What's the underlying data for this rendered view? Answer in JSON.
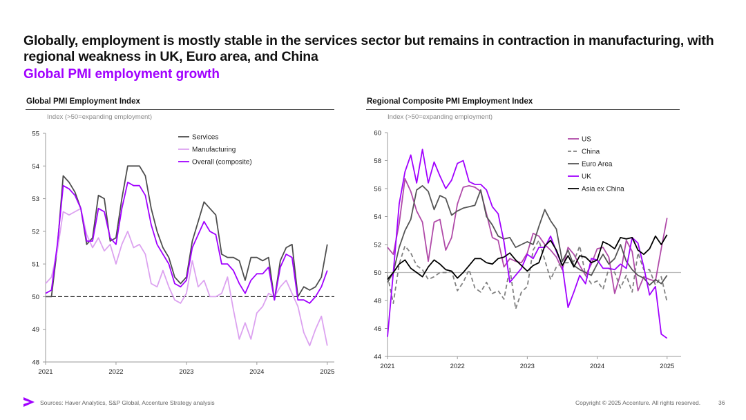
{
  "header": {
    "title": "Globally, employment is mostly stable in the services sector but remains in contraction in manufacturing, with regional weakness in UK, Euro area, and China",
    "subtitle": "Global PMI employment growth"
  },
  "footer": {
    "sources": "Sources: Haver Analytics, S&P Global, Accenture Strategy analysis",
    "copyright": "Copyright © 2025 Accenture. All rights reserved.",
    "page_number": "36"
  },
  "colors": {
    "accent": "#a100ff"
  },
  "chart_data": [
    {
      "type": "line",
      "title": "Global PMI Employment Index",
      "ylabel": "Index (>50=expanding employment)",
      "xlabel": "",
      "x_start": 2021.0,
      "x_step": 0.08333,
      "xlim": [
        2021.0,
        2025.1
      ],
      "ylim": [
        48,
        55
      ],
      "x_ticks": [
        "2021",
        "2022",
        "2023",
        "2024",
        "2025"
      ],
      "y_ticks": [
        "48",
        "49",
        "50",
        "51",
        "52",
        "53",
        "54",
        "55"
      ],
      "reference_line": {
        "y": 50,
        "style": "dashed",
        "color": "#000000"
      },
      "legend_position": "top-right",
      "series": [
        {
          "name": "Services",
          "color": "#4d4d4d",
          "dash": "",
          "values": [
            50.0,
            50.0,
            51.5,
            53.7,
            53.5,
            53.2,
            52.7,
            51.6,
            51.8,
            53.1,
            53.0,
            51.7,
            51.8,
            53.0,
            54.0,
            54.0,
            54.0,
            53.7,
            52.7,
            52.0,
            51.5,
            51.2,
            50.6,
            50.4,
            50.6,
            51.7,
            52.3,
            52.9,
            52.7,
            52.5,
            51.3,
            51.2,
            51.2,
            51.1,
            50.5,
            51.2,
            51.2,
            51.1,
            51.2,
            49.9,
            51.1,
            51.5,
            51.6,
            50.0,
            50.3,
            50.2,
            50.3,
            50.6,
            51.6
          ]
        },
        {
          "name": "Manufacturing",
          "color": "#dca2f0",
          "dash": "",
          "values": [
            50.4,
            50.6,
            51.4,
            52.6,
            52.5,
            52.6,
            52.7,
            51.9,
            51.5,
            51.8,
            51.4,
            51.6,
            51.0,
            51.6,
            52.0,
            51.5,
            51.6,
            51.3,
            50.4,
            50.3,
            50.8,
            50.3,
            49.9,
            49.8,
            50.1,
            51.1,
            50.3,
            50.5,
            50.0,
            50.0,
            50.1,
            50.6,
            49.6,
            48.7,
            49.2,
            48.7,
            49.5,
            49.7,
            50.1,
            50.0,
            50.3,
            50.5,
            50.1,
            49.7,
            48.9,
            48.5,
            49.0,
            49.4,
            48.5
          ]
        },
        {
          "name": "Overall (composite)",
          "color": "#a100ff",
          "dash": "",
          "values": [
            50.1,
            50.2,
            51.6,
            53.4,
            53.3,
            53.1,
            52.7,
            51.7,
            51.7,
            52.7,
            52.6,
            51.8,
            51.6,
            52.7,
            53.5,
            53.4,
            53.4,
            53.1,
            52.2,
            51.6,
            51.3,
            51.0,
            50.4,
            50.3,
            50.5,
            51.5,
            51.9,
            52.3,
            52.0,
            51.9,
            51.0,
            51.0,
            50.8,
            50.4,
            50.1,
            50.5,
            50.7,
            50.7,
            50.9,
            49.9,
            50.9,
            51.3,
            51.2,
            49.9,
            49.9,
            49.8,
            50.0,
            50.3,
            50.8
          ]
        }
      ]
    },
    {
      "type": "line",
      "title": "Regional Composite PMI Employment Index",
      "ylabel": "Index (>50=expanding employment)",
      "xlabel": "",
      "x_start": 2021.0,
      "x_step": 0.08333,
      "xlim": [
        2021.0,
        2025.2
      ],
      "ylim": [
        44,
        60
      ],
      "x_ticks": [
        "2021",
        "2022",
        "2023",
        "2024",
        "2025"
      ],
      "y_ticks": [
        "44",
        "46",
        "48",
        "50",
        "52",
        "54",
        "56",
        "58",
        "60"
      ],
      "reference_line": {
        "y": 50,
        "style": "solid",
        "color": "#bbbbbb"
      },
      "legend_position": "top-right",
      "series": [
        {
          "name": "US",
          "color": "#b04aa8",
          "dash": "",
          "values": [
            51.8,
            51.3,
            53.5,
            56.7,
            55.8,
            54.4,
            53.6,
            50.8,
            53.6,
            53.8,
            51.6,
            52.5,
            54.9,
            56.1,
            56.2,
            56.1,
            55.8,
            54.2,
            52.5,
            52.3,
            50.4,
            51.0,
            50.8,
            50.7,
            51.4,
            52.8,
            52.6,
            52.0,
            51.6,
            51.1,
            50.2,
            51.8,
            51.3,
            50.5,
            49.8,
            50.6,
            51.7,
            51.8,
            51.1,
            48.5,
            49.9,
            52.3,
            51.5,
            48.7,
            49.7,
            49.5,
            49.4,
            51.7,
            53.9
          ]
        },
        {
          "name": "China",
          "color": "#808080",
          "dash": "6,4",
          "values": [
            49.8,
            47.8,
            50.6,
            51.9,
            51.4,
            50.5,
            50.2,
            49.5,
            49.7,
            50.0,
            50.0,
            50.1,
            48.7,
            49.3,
            50.2,
            48.9,
            48.6,
            49.3,
            48.5,
            48.7,
            48.1,
            50.3,
            47.4,
            48.6,
            49.0,
            51.6,
            52.3,
            50.9,
            49.5,
            50.4,
            50.7,
            50.7,
            50.8,
            51.9,
            49.8,
            49.2,
            49.4,
            48.8,
            50.3,
            50.0,
            48.9,
            49.8,
            48.6,
            51.4,
            50.2,
            50.2,
            49.1,
            49.7,
            47.9
          ]
        },
        {
          "name": "Euro Area",
          "color": "#555555",
          "dash": "",
          "values": [
            49.3,
            50.0,
            51.8,
            53.0,
            53.8,
            55.9,
            56.2,
            55.8,
            54.5,
            55.5,
            55.3,
            54.1,
            54.4,
            54.6,
            54.7,
            54.8,
            55.9,
            54.0,
            53.4,
            52.6,
            52.4,
            52.5,
            51.8,
            52.0,
            52.2,
            52.0,
            53.3,
            54.5,
            53.7,
            53.1,
            50.8,
            51.6,
            50.5,
            50.2,
            50.0,
            49.8,
            50.6,
            51.3,
            50.6,
            51.0,
            52.0,
            50.8,
            50.2,
            49.8,
            49.6,
            49.1,
            49.5,
            49.2,
            49.8
          ]
        },
        {
          "name": "UK",
          "color": "#a100ff",
          "dash": "",
          "values": [
            45.4,
            50.0,
            54.9,
            57.2,
            58.4,
            56.4,
            58.8,
            56.4,
            57.9,
            56.9,
            56.0,
            56.6,
            57.8,
            58.0,
            56.5,
            56.3,
            56.3,
            55.9,
            54.7,
            54.2,
            52.2,
            49.3,
            49.8,
            50.3,
            51.3,
            51.0,
            51.8,
            51.8,
            52.6,
            51.5,
            50.5,
            47.5,
            48.6,
            49.8,
            49.2,
            51.0,
            50.9,
            50.3,
            50.3,
            50.2,
            50.6,
            50.3,
            52.5,
            52.1,
            50.4,
            48.4,
            49.0,
            45.6,
            45.3
          ]
        },
        {
          "name": "Asia ex China",
          "color": "#000000",
          "dash": "",
          "values": [
            49.5,
            50.0,
            50.6,
            50.9,
            50.3,
            50.0,
            49.7,
            50.4,
            50.9,
            50.6,
            50.2,
            50.1,
            49.6,
            50.0,
            50.5,
            51.0,
            51.0,
            50.7,
            50.6,
            51.0,
            51.1,
            51.4,
            50.9,
            50.5,
            50.1,
            50.5,
            50.7,
            51.9,
            52.3,
            51.6,
            50.5,
            51.2,
            50.4,
            51.2,
            51.1,
            50.7,
            50.9,
            52.2,
            52.0,
            51.7,
            52.5,
            52.4,
            52.5,
            51.6,
            51.3,
            51.7,
            52.6,
            52.0,
            52.7
          ]
        }
      ]
    }
  ]
}
